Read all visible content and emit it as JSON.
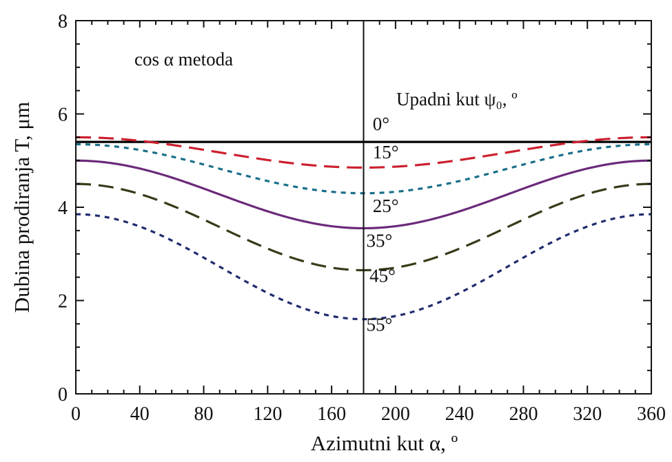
{
  "chart_data": {
    "type": "line",
    "title": "",
    "annotation": "cos α metoda",
    "legend_title": "Upadni kut ψ₀, º",
    "xlabel": "Azimutni kut α, º",
    "ylabel": "Dubina prodiranja T, μm",
    "xlim": [
      0,
      360
    ],
    "ylim": [
      0,
      8
    ],
    "xticks": [
      0,
      40,
      80,
      120,
      160,
      200,
      240,
      280,
      320,
      360
    ],
    "yticks": [
      0,
      2,
      4,
      6,
      8
    ],
    "vline_x": 180,
    "series": [
      {
        "name": "0°",
        "label": "0°",
        "color": "#000000",
        "dash": "solid",
        "max": 5.4,
        "min": 5.4,
        "label_x": 184,
        "label_y": 5.65
      },
      {
        "name": "15°",
        "label": "15°",
        "color": "#cc1f2e",
        "dash": "long",
        "max": 5.5,
        "min": 4.85,
        "label_x": 184,
        "label_y": 5.05
      },
      {
        "name": "25°",
        "label": "25°",
        "color": "#1a6f8a",
        "dash": "short",
        "max": 5.35,
        "min": 4.3,
        "label_x": 184,
        "label_y": 3.9
      },
      {
        "name": "35°",
        "label": "35°",
        "color": "#6b2a7a",
        "dash": "solid",
        "max": 5.0,
        "min": 3.55,
        "label_x": 180,
        "label_y": 3.15
      },
      {
        "name": "45°",
        "label": "45°",
        "color": "#3a3a1a",
        "dash": "long",
        "max": 4.5,
        "min": 2.65,
        "label_x": 182,
        "label_y": 2.4
      },
      {
        "name": "55°",
        "label": "55°",
        "color": "#1f2a6e",
        "dash": "short",
        "max": 3.85,
        "min": 1.6,
        "label_x": 180,
        "label_y": 1.35
      }
    ]
  }
}
